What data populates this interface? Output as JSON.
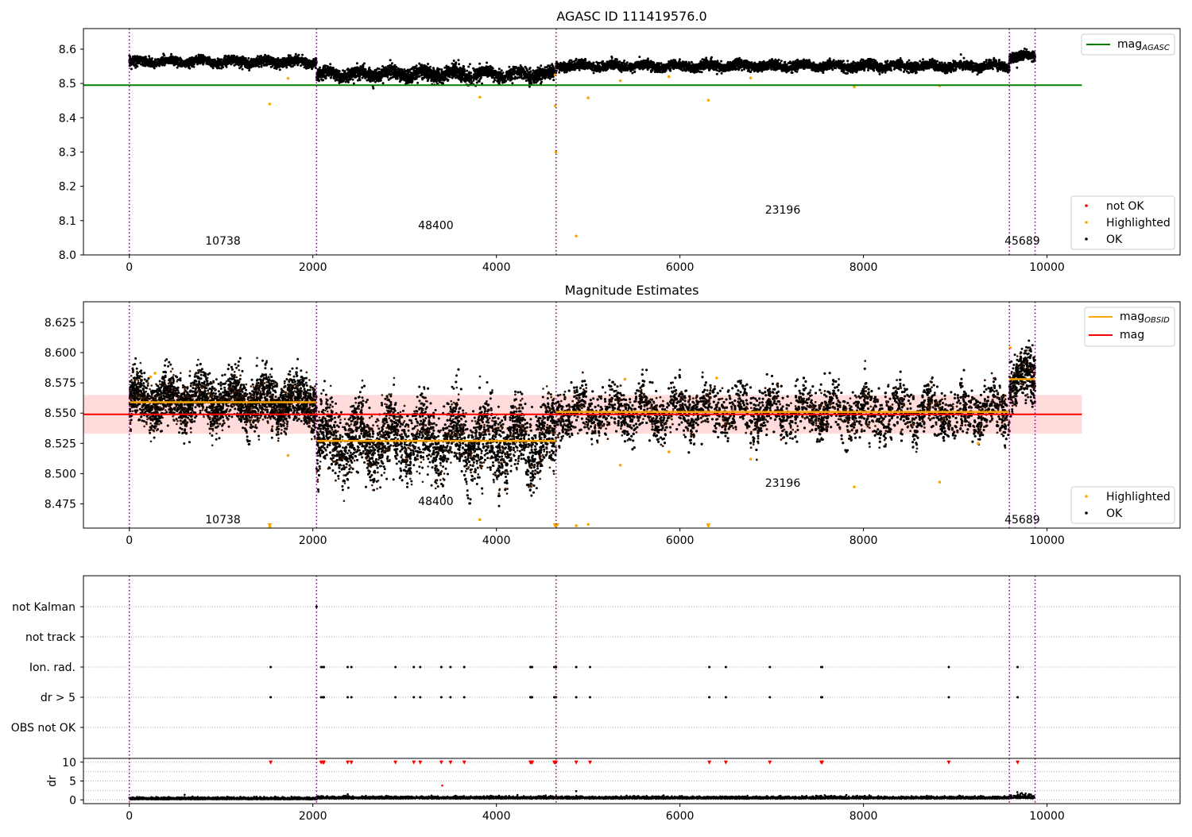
{
  "figure": {
    "background": "#ffffff"
  },
  "chart_data": [
    {
      "type": "scatter",
      "title": "AGASC ID 111419576.0",
      "xlim": [
        -500,
        11450
      ],
      "ylim": [
        8.0,
        8.66
      ],
      "xticks": [
        "0",
        "2000",
        "4000",
        "6000",
        "8000",
        "10000"
      ],
      "yticks": [
        "8.0",
        "8.1",
        "8.2",
        "8.3",
        "8.4",
        "8.5",
        "8.6"
      ],
      "grid": false,
      "obsid_boundaries": [
        0,
        2040,
        4650,
        9590,
        9870
      ],
      "obsid_labels": [
        {
          "text": "10738",
          "x": 1020,
          "y": 8.03
        },
        {
          "text": "48400",
          "x": 3340,
          "y": 8.075
        },
        {
          "text": "23196",
          "x": 7120,
          "y": 8.12
        },
        {
          "text": "45689",
          "x": 9730,
          "y": 8.03
        }
      ],
      "horizontal_lines": [
        {
          "name": "mag_AGASC",
          "y": 8.495,
          "x_range": [
            -500,
            10380
          ],
          "color": "#008000"
        }
      ],
      "series": [
        {
          "name": "not OK",
          "color": "#ff0000",
          "points": []
        },
        {
          "name": "Highlighted",
          "color": "#ffa500",
          "points": [
            [
              1530,
              8.44
            ],
            [
              1730,
              8.515
            ],
            [
              3820,
              8.46
            ],
            [
              4870,
              8.055
            ],
            [
              5000,
              8.458
            ],
            [
              5350,
              8.508
            ],
            [
              5880,
              8.52
            ],
            [
              6310,
              8.451
            ],
            [
              6770,
              8.516
            ],
            [
              7900,
              8.49
            ],
            [
              8830,
              8.493
            ],
            [
              4640,
              8.435
            ],
            [
              4650,
              8.3
            ],
            [
              4640,
              8.525
            ]
          ]
        },
        {
          "name": "OK",
          "color": "#000000",
          "points": []
        }
      ],
      "ok_segments": [
        {
          "x": [
            0,
            2040
          ],
          "mean": 8.563,
          "spread": 0.012
        },
        {
          "x": [
            2040,
            4650
          ],
          "mean": 8.527,
          "spread": 0.018
        },
        {
          "x": [
            4650,
            9590
          ],
          "mean": 8.551,
          "spread": 0.012
        },
        {
          "x": [
            9590,
            9870
          ],
          "mean": 8.578,
          "spread": 0.012
        }
      ],
      "legend_lines": [
        {
          "label": "mag",
          "sub": "AGASC",
          "color": "#008000"
        }
      ],
      "legend_points": [
        {
          "label": "not OK",
          "color": "#ff0000"
        },
        {
          "label": "Highlighted",
          "color": "#ffa500"
        },
        {
          "label": "OK",
          "color": "#000000"
        }
      ]
    },
    {
      "type": "scatter",
      "title": "Magnitude Estimates",
      "xlim": [
        -500,
        11450
      ],
      "ylim": [
        8.455,
        8.642
      ],
      "xticks": [
        "0",
        "2000",
        "4000",
        "6000",
        "8000",
        "10000"
      ],
      "yticks": [
        "8.475",
        "8.500",
        "8.525",
        "8.550",
        "8.575",
        "8.600",
        "8.625"
      ],
      "grid": false,
      "obsid_boundaries": [
        0,
        2040,
        4650,
        9590,
        9870
      ],
      "obsid_labels": [
        {
          "text": "10738",
          "x": 1020,
          "y": 8.459
        },
        {
          "text": "48400",
          "x": 3340,
          "y": 8.474
        },
        {
          "text": "23196",
          "x": 7120,
          "y": 8.489
        },
        {
          "text": "45689",
          "x": 9730,
          "y": 8.459
        }
      ],
      "band": {
        "y": [
          8.533,
          8.565
        ],
        "x_range": [
          -500,
          10380
        ],
        "color": "#ffcccc"
      },
      "horizontal_lines": [
        {
          "name": "mag",
          "y": 8.549,
          "x_range": [
            -500,
            10380
          ],
          "color": "#ff0000"
        }
      ],
      "obsid_mags": [
        {
          "x": [
            0,
            2040
          ],
          "y": 8.559
        },
        {
          "x": [
            2040,
            4650
          ],
          "y": 8.527
        },
        {
          "x": [
            4650,
            9590
          ],
          "y": 8.551
        },
        {
          "x": [
            9590,
            9870
          ],
          "y": 8.578
        }
      ],
      "series": [
        {
          "name": "Highlighted",
          "color": "#ffa500",
          "points": [
            [
              1530,
              8.456
            ],
            [
              1730,
              8.515
            ],
            [
              3820,
              8.462
            ],
            [
              4640,
              8.457
            ],
            [
              4870,
              8.457
            ],
            [
              5000,
              8.458
            ],
            [
              5350,
              8.507
            ],
            [
              5880,
              8.518
            ],
            [
              6310,
              8.457
            ],
            [
              6770,
              8.512
            ],
            [
              7900,
              8.489
            ],
            [
              8830,
              8.493
            ],
            [
              230,
              8.58
            ],
            [
              280,
              8.583
            ],
            [
              5400,
              8.578
            ],
            [
              6400,
              8.579
            ],
            [
              9600,
              8.604
            ],
            [
              9250,
              8.525
            ]
          ]
        },
        {
          "name": "OK",
          "color": "#000000",
          "points": [
            [
              4020,
              8.498
            ]
          ]
        }
      ],
      "ok_segments": [
        {
          "x": [
            0,
            2040
          ],
          "mean": 8.56,
          "spread": 0.018
        },
        {
          "x": [
            2040,
            4650
          ],
          "mean": 8.527,
          "spread": 0.026
        },
        {
          "x": [
            4650,
            9590
          ],
          "mean": 8.551,
          "spread": 0.018
        },
        {
          "x": [
            9590,
            9870
          ],
          "mean": 8.578,
          "spread": 0.018
        }
      ],
      "legend_lines": [
        {
          "label": "mag",
          "sub": "OBSID",
          "color": "#ffa500"
        },
        {
          "label": "mag",
          "sub": "",
          "color": "#ff0000"
        }
      ],
      "legend_points": [
        {
          "label": "Highlighted",
          "color": "#ffa500"
        },
        {
          "label": "OK",
          "color": "#000000"
        }
      ]
    },
    {
      "type": "scatter",
      "title": "",
      "xlim": [
        -500,
        11450
      ],
      "categories": [
        "not Kalman",
        "not track",
        "Ion. rad.",
        "dr > 5",
        "OBS not OK"
      ],
      "obsid_boundaries": [
        0,
        2040,
        4650,
        9590,
        9870
      ],
      "flag_x": [
        1540,
        2090,
        2110,
        2120,
        2380,
        2420,
        2900,
        3100,
        3170,
        3400,
        3500,
        3650,
        4370,
        4380,
        4390,
        4630,
        4640,
        4650,
        4870,
        5020,
        6320,
        6500,
        6980,
        7540,
        7550,
        8930,
        9680
      ],
      "kalman_x": [
        2040
      ],
      "dr_panel": {
        "ylabel": "dr",
        "ylim": [
          -1,
          11
        ],
        "yticks": [
          "0",
          "5",
          "10"
        ],
        "capped_value": 10,
        "outliers": [
          [
            3410,
            3.8
          ],
          [
            4870,
            2.3
          ],
          [
            2380,
            1.5
          ]
        ]
      }
    }
  ]
}
